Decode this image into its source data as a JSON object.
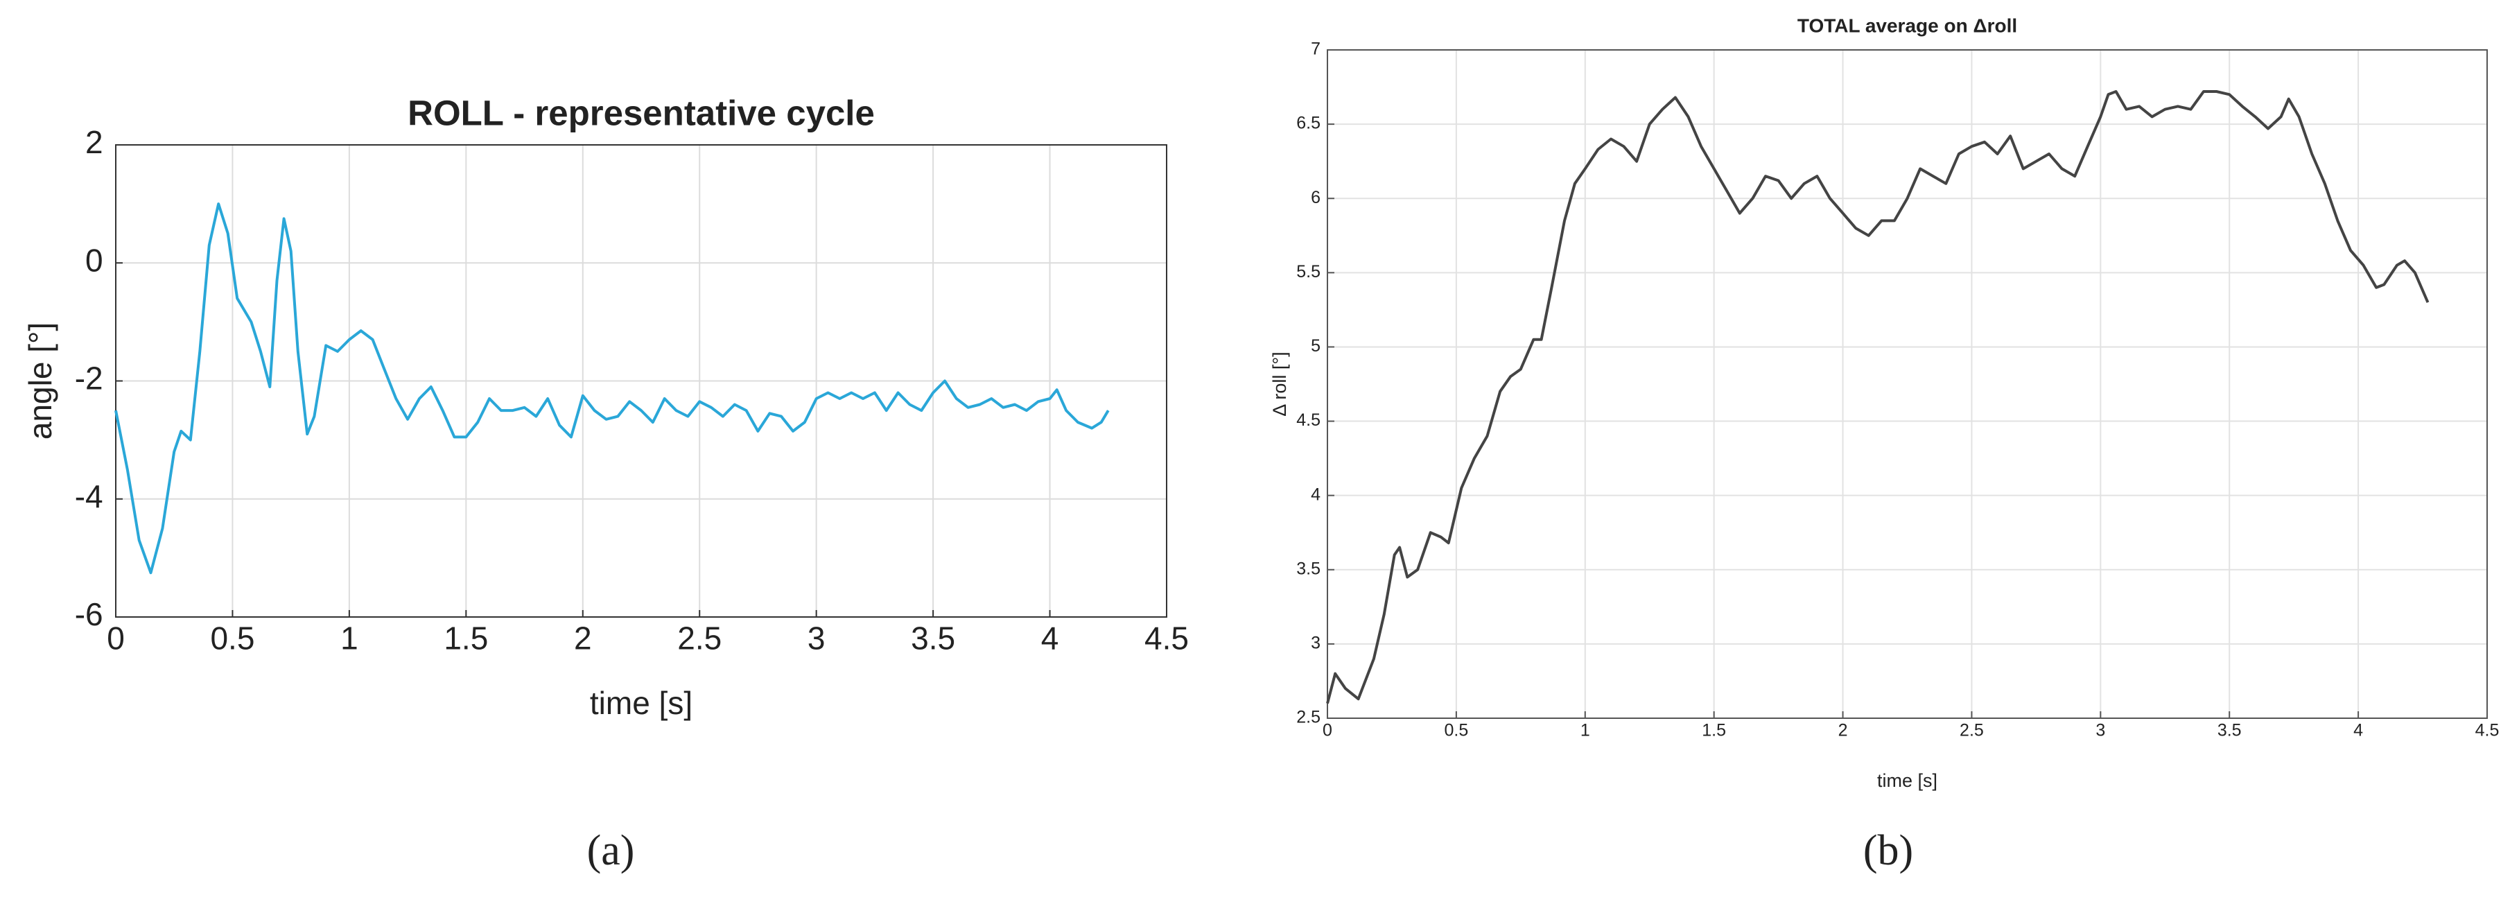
{
  "chart_data": [
    {
      "type": "line",
      "title": "ROLL - representative cycle",
      "x_label": "time [s]",
      "y_label": "angle [°]",
      "caption": "(a)",
      "color": "#2aa7d8",
      "grid": true,
      "xlim": [
        0,
        4.5
      ],
      "xticks": [
        0,
        0.5,
        1,
        1.5,
        2,
        2.5,
        3,
        3.5,
        4,
        4.5
      ],
      "ylim": [
        -6,
        2
      ],
      "yticks": [
        -6,
        -4,
        -2,
        0,
        2
      ],
      "x": [
        0,
        0.05,
        0.1,
        0.15,
        0.2,
        0.25,
        0.28,
        0.32,
        0.36,
        0.4,
        0.44,
        0.48,
        0.52,
        0.58,
        0.62,
        0.66,
        0.69,
        0.72,
        0.75,
        0.78,
        0.82,
        0.85,
        0.9,
        0.95,
        1.0,
        1.05,
        1.1,
        1.15,
        1.2,
        1.25,
        1.3,
        1.35,
        1.4,
        1.45,
        1.5,
        1.55,
        1.6,
        1.65,
        1.7,
        1.75,
        1.8,
        1.85,
        1.9,
        1.95,
        2.0,
        2.05,
        2.1,
        2.15,
        2.2,
        2.25,
        2.3,
        2.35,
        2.4,
        2.45,
        2.5,
        2.55,
        2.6,
        2.65,
        2.7,
        2.75,
        2.8,
        2.85,
        2.9,
        2.95,
        3.0,
        3.05,
        3.1,
        3.15,
        3.2,
        3.25,
        3.3,
        3.35,
        3.4,
        3.45,
        3.5,
        3.55,
        3.6,
        3.65,
        3.7,
        3.75,
        3.8,
        3.85,
        3.9,
        3.95,
        4.0,
        4.03,
        4.07,
        4.12,
        4.18,
        4.22,
        4.25
      ],
      "values": [
        -2.5,
        -3.5,
        -4.7,
        -5.25,
        -4.5,
        -3.2,
        -2.85,
        -3.0,
        -1.5,
        0.3,
        1.0,
        0.5,
        -0.6,
        -1.0,
        -1.5,
        -2.1,
        -0.3,
        0.75,
        0.2,
        -1.5,
        -2.9,
        -2.6,
        -1.4,
        -1.5,
        -1.3,
        -1.15,
        -1.3,
        -1.8,
        -2.3,
        -2.65,
        -2.3,
        -2.1,
        -2.5,
        -2.95,
        -2.95,
        -2.7,
        -2.3,
        -2.5,
        -2.5,
        -2.45,
        -2.6,
        -2.3,
        -2.75,
        -2.95,
        -2.25,
        -2.5,
        -2.65,
        -2.6,
        -2.35,
        -2.5,
        -2.7,
        -2.3,
        -2.5,
        -2.6,
        -2.35,
        -2.45,
        -2.6,
        -2.4,
        -2.5,
        -2.85,
        -2.55,
        -2.6,
        -2.85,
        -2.7,
        -2.3,
        -2.2,
        -2.3,
        -2.2,
        -2.3,
        -2.2,
        -2.5,
        -2.2,
        -2.4,
        -2.5,
        -2.2,
        -2.0,
        -2.3,
        -2.45,
        -2.4,
        -2.3,
        -2.45,
        -2.4,
        -2.5,
        -2.35,
        -2.3,
        -2.15,
        -2.5,
        -2.7,
        -2.8,
        -2.7,
        -2.5
      ]
    },
    {
      "type": "line",
      "title": "TOTAL average on Δroll",
      "x_label": "time [s]",
      "y_label": "Δ roll [°]",
      "caption": "(b)",
      "color": "#444444",
      "grid": true,
      "xlim": [
        0,
        4.5
      ],
      "xticks": [
        0,
        0.5,
        1,
        1.5,
        2,
        2.5,
        3,
        3.5,
        4,
        4.5
      ],
      "ylim": [
        2.5,
        7
      ],
      "yticks": [
        2.5,
        3,
        3.5,
        4,
        4.5,
        5,
        5.5,
        6,
        6.5,
        7
      ],
      "x": [
        0,
        0.03,
        0.07,
        0.12,
        0.18,
        0.22,
        0.26,
        0.28,
        0.31,
        0.35,
        0.4,
        0.44,
        0.47,
        0.52,
        0.57,
        0.62,
        0.67,
        0.71,
        0.75,
        0.8,
        0.83,
        0.87,
        0.92,
        0.96,
        1.0,
        1.05,
        1.1,
        1.15,
        1.2,
        1.25,
        1.3,
        1.35,
        1.4,
        1.45,
        1.5,
        1.55,
        1.6,
        1.65,
        1.7,
        1.75,
        1.8,
        1.85,
        1.9,
        1.95,
        2.0,
        2.05,
        2.1,
        2.15,
        2.2,
        2.25,
        2.3,
        2.35,
        2.4,
        2.45,
        2.5,
        2.55,
        2.6,
        2.65,
        2.7,
        2.75,
        2.8,
        2.85,
        2.9,
        2.95,
        3.0,
        3.03,
        3.06,
        3.1,
        3.15,
        3.2,
        3.25,
        3.3,
        3.35,
        3.4,
        3.45,
        3.5,
        3.55,
        3.6,
        3.65,
        3.7,
        3.73,
        3.77,
        3.82,
        3.87,
        3.92,
        3.97,
        4.02,
        4.07,
        4.1,
        4.15,
        4.18,
        4.22,
        4.27
      ],
      "values": [
        2.6,
        2.8,
        2.7,
        2.63,
        2.9,
        3.2,
        3.6,
        3.65,
        3.45,
        3.5,
        3.75,
        3.72,
        3.68,
        4.05,
        4.25,
        4.4,
        4.7,
        4.8,
        4.85,
        5.05,
        5.05,
        5.4,
        5.85,
        6.1,
        6.2,
        6.33,
        6.4,
        6.35,
        6.25,
        6.5,
        6.6,
        6.68,
        6.55,
        6.35,
        6.2,
        6.05,
        5.9,
        6.0,
        6.15,
        6.12,
        6.0,
        6.1,
        6.15,
        6.0,
        5.9,
        5.8,
        5.75,
        5.85,
        5.85,
        6.0,
        6.2,
        6.15,
        6.1,
        6.3,
        6.35,
        6.38,
        6.3,
        6.42,
        6.2,
        6.25,
        6.3,
        6.2,
        6.15,
        6.35,
        6.55,
        6.7,
        6.72,
        6.6,
        6.62,
        6.55,
        6.6,
        6.62,
        6.6,
        6.72,
        6.72,
        6.7,
        6.62,
        6.55,
        6.47,
        6.55,
        6.67,
        6.55,
        6.3,
        6.1,
        5.85,
        5.65,
        5.55,
        5.4,
        5.42,
        5.55,
        5.58,
        5.5,
        5.3
      ]
    }
  ]
}
